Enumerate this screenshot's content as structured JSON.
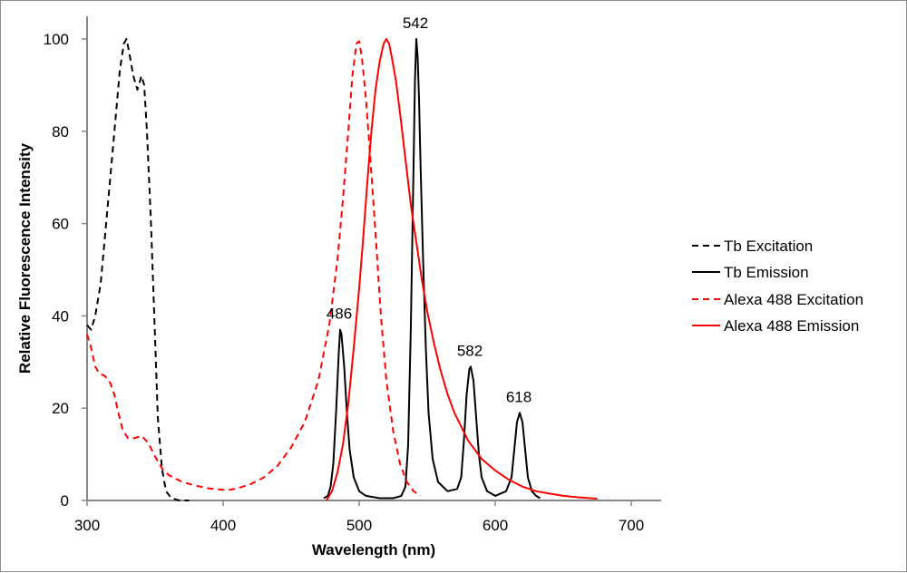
{
  "chart_data": {
    "type": "line",
    "xlabel": "Wavelength (nm)",
    "ylabel": "Relative Fluorescence Intensity",
    "xlim": [
      300,
      720
    ],
    "ylim": [
      0,
      105
    ],
    "xticks": [
      300,
      400,
      500,
      600,
      700
    ],
    "yticks": [
      0,
      20,
      40,
      60,
      80,
      100
    ],
    "grid": false,
    "legend_position": "right",
    "series": [
      {
        "name": "Tb Excitation",
        "color": "#000000",
        "dash": "dashed",
        "points": [
          [
            300,
            38
          ],
          [
            303,
            37
          ],
          [
            306,
            40
          ],
          [
            310,
            47
          ],
          [
            314,
            60
          ],
          [
            318,
            73
          ],
          [
            321,
            83
          ],
          [
            324,
            93
          ],
          [
            327,
            99
          ],
          [
            329,
            100
          ],
          [
            331,
            97
          ],
          [
            334,
            92
          ],
          [
            337,
            89
          ],
          [
            340,
            92
          ],
          [
            342,
            90
          ],
          [
            344,
            80
          ],
          [
            347,
            60
          ],
          [
            350,
            35
          ],
          [
            352,
            18
          ],
          [
            355,
            7
          ],
          [
            358,
            2
          ],
          [
            362,
            0.5
          ],
          [
            368,
            0
          ],
          [
            375,
            0
          ]
        ]
      },
      {
        "name": "Tb Emission",
        "color": "#000000",
        "dash": "solid",
        "points": [
          [
            474,
            0.5
          ],
          [
            477,
            1
          ],
          [
            479,
            3
          ],
          [
            481,
            8
          ],
          [
            483,
            19
          ],
          [
            485,
            32
          ],
          [
            486,
            37
          ],
          [
            487,
            36
          ],
          [
            489,
            29
          ],
          [
            491,
            19
          ],
          [
            493,
            11
          ],
          [
            496,
            5
          ],
          [
            500,
            2
          ],
          [
            505,
            1
          ],
          [
            515,
            0.5
          ],
          [
            525,
            0.5
          ],
          [
            531,
            1
          ],
          [
            534,
            3
          ],
          [
            536,
            12
          ],
          [
            538,
            38
          ],
          [
            540,
            73
          ],
          [
            541,
            91
          ],
          [
            542,
            100
          ],
          [
            543,
            96
          ],
          [
            544,
            87
          ],
          [
            545,
            74
          ],
          [
            547,
            52
          ],
          [
            549,
            33
          ],
          [
            551,
            19
          ],
          [
            554,
            9
          ],
          [
            558,
            4
          ],
          [
            565,
            2
          ],
          [
            572,
            2.5
          ],
          [
            575,
            5
          ],
          [
            577,
            13
          ],
          [
            579,
            23
          ],
          [
            581,
            28.5
          ],
          [
            582,
            29
          ],
          [
            584,
            26
          ],
          [
            586,
            18
          ],
          [
            588,
            10
          ],
          [
            590,
            5
          ],
          [
            594,
            2
          ],
          [
            600,
            1
          ],
          [
            608,
            2
          ],
          [
            612,
            5
          ],
          [
            614,
            11
          ],
          [
            616,
            17
          ],
          [
            618,
            19
          ],
          [
            620,
            17
          ],
          [
            622,
            11
          ],
          [
            624,
            5
          ],
          [
            627,
            2
          ],
          [
            630,
            1
          ],
          [
            633,
            0.5
          ]
        ]
      },
      {
        "name": "Alexa 488 Excitation",
        "color": "#ff0000",
        "dash": "dashed",
        "points": [
          [
            300,
            36
          ],
          [
            303,
            33
          ],
          [
            306,
            29
          ],
          [
            309,
            27.5
          ],
          [
            313,
            27
          ],
          [
            317,
            25.5
          ],
          [
            320,
            23
          ],
          [
            323,
            19
          ],
          [
            326,
            15.5
          ],
          [
            330,
            13.5
          ],
          [
            335,
            13.5
          ],
          [
            340,
            14
          ],
          [
            345,
            12.5
          ],
          [
            350,
            9.5
          ],
          [
            355,
            7
          ],
          [
            360,
            5.5
          ],
          [
            370,
            4
          ],
          [
            380,
            3.2
          ],
          [
            390,
            2.6
          ],
          [
            400,
            2.3
          ],
          [
            405,
            2.3
          ],
          [
            410,
            2.6
          ],
          [
            420,
            3.5
          ],
          [
            430,
            5
          ],
          [
            440,
            7.5
          ],
          [
            450,
            11.5
          ],
          [
            460,
            17
          ],
          [
            470,
            26
          ],
          [
            478,
            38
          ],
          [
            484,
            52
          ],
          [
            488,
            65
          ],
          [
            492,
            80
          ],
          [
            495,
            92
          ],
          [
            498,
            99
          ],
          [
            500,
            99.5
          ],
          [
            502,
            96
          ],
          [
            505,
            87
          ],
          [
            508,
            75
          ],
          [
            512,
            58
          ],
          [
            516,
            40
          ],
          [
            520,
            26
          ],
          [
            525,
            15
          ],
          [
            530,
            8
          ],
          [
            535,
            4
          ],
          [
            540,
            2
          ],
          [
            545,
            1
          ]
        ]
      },
      {
        "name": "Alexa 488 Emission",
        "color": "#ff0000",
        "dash": "solid",
        "points": [
          [
            476,
            0
          ],
          [
            480,
            2
          ],
          [
            484,
            6
          ],
          [
            488,
            12
          ],
          [
            492,
            21
          ],
          [
            496,
            33
          ],
          [
            500,
            46
          ],
          [
            503,
            57
          ],
          [
            506,
            69
          ],
          [
            509,
            80
          ],
          [
            512,
            89
          ],
          [
            515,
            95
          ],
          [
            518,
            99
          ],
          [
            520,
            100
          ],
          [
            522,
            99
          ],
          [
            524,
            96
          ],
          [
            527,
            91
          ],
          [
            530,
            84
          ],
          [
            534,
            74
          ],
          [
            538,
            64
          ],
          [
            542,
            56
          ],
          [
            546,
            48
          ],
          [
            550,
            41
          ],
          [
            555,
            34
          ],
          [
            560,
            28
          ],
          [
            565,
            23
          ],
          [
            570,
            19
          ],
          [
            575,
            16
          ],
          [
            580,
            13
          ],
          [
            590,
            9
          ],
          [
            600,
            6.5
          ],
          [
            610,
            4.5
          ],
          [
            620,
            3
          ],
          [
            630,
            2
          ],
          [
            640,
            1.5
          ],
          [
            650,
            1
          ],
          [
            660,
            0.7
          ],
          [
            675,
            0.4
          ]
        ]
      }
    ],
    "annotations": [
      {
        "label": "486",
        "x": 486,
        "y": 37
      },
      {
        "label": "542",
        "x": 542,
        "y": 100
      },
      {
        "label": "582",
        "x": 582,
        "y": 29
      },
      {
        "label": "618",
        "x": 618,
        "y": 19
      }
    ]
  }
}
